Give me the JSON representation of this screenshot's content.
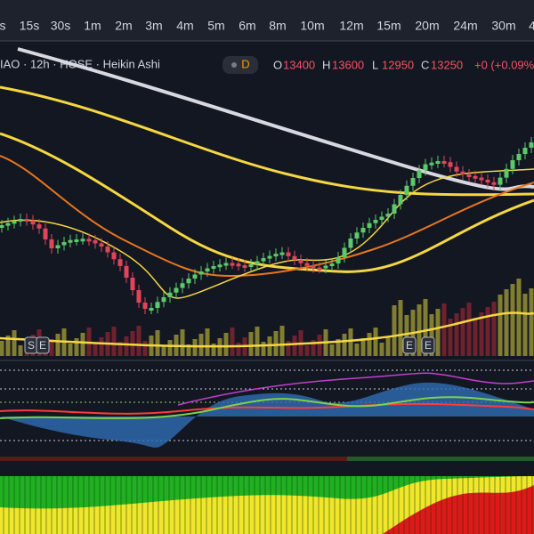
{
  "toolbar": {
    "intervals": [
      "s",
      "15s",
      "30s",
      "1m",
      "2m",
      "3m",
      "4m",
      "5m",
      "6m",
      "8m",
      "10m",
      "12m",
      "15m",
      "20m",
      "24m",
      "30m",
      "4"
    ]
  },
  "legend": {
    "symbol": "IAO · 12h · HOSE · Heikin Ashi",
    "badge": "D",
    "ohlc": [
      {
        "label": "O",
        "value": "13400"
      },
      {
        "label": "H",
        "value": "13600"
      },
      {
        "label": "L",
        "value": "12950"
      },
      {
        "label": "C",
        "value": "13250"
      }
    ],
    "change": "+0 (+0.09%)"
  },
  "markers": [
    "S",
    "E",
    "E",
    "E"
  ]
}
